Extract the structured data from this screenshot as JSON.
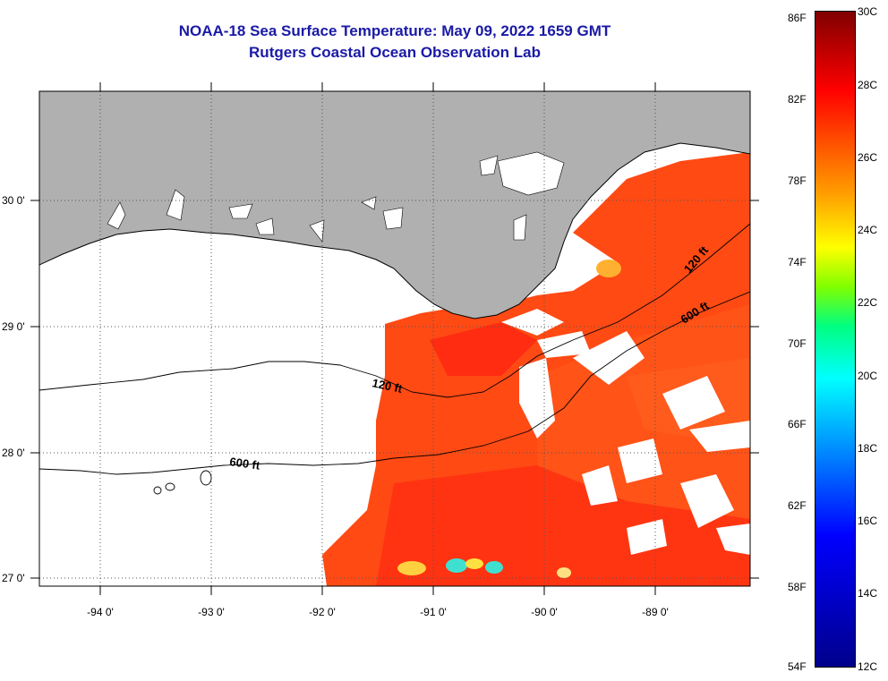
{
  "title": {
    "line1": "NOAA-18 Sea Surface Temperature:  May 09, 2022 1659 GMT",
    "line2": "Rutgers Coastal Ocean Observation Lab"
  },
  "axes": {
    "longitude_ticks": [
      "-94 0'",
      "-93 0'",
      "-92 0'",
      "-91 0'",
      "-90 0'",
      "-89 0'"
    ],
    "latitude_ticks": [
      "30 0'",
      "29 0'",
      "28 0'",
      "27 0'"
    ]
  },
  "contours": {
    "label_120_west": "120 ft",
    "label_600_west": "600 ft",
    "label_120_east": "120 ft",
    "label_600_east": "600 ft"
  },
  "colorbar": {
    "fahrenheit": [
      "86F",
      "82F",
      "78F",
      "74F",
      "70F",
      "66F",
      "62F",
      "58F",
      "54F"
    ],
    "celsius": [
      "30C",
      "28C",
      "26C",
      "24C",
      "22C",
      "20C",
      "18C",
      "16C",
      "14C",
      "12C"
    ]
  },
  "colors": {
    "title": "#1a1aa6",
    "land": "#b0b0b0",
    "sst_warm": "#ff4a14",
    "sst_hot": "#ff1e10"
  }
}
